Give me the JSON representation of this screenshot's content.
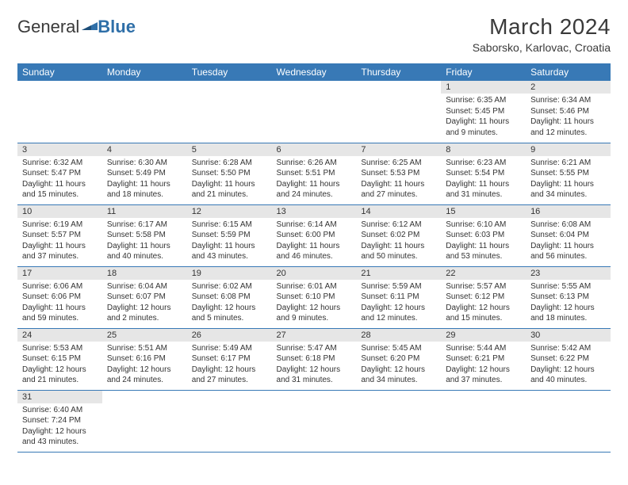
{
  "logo": {
    "text1": "General",
    "text2": "Blue"
  },
  "title": "March 2024",
  "location": "Saborsko, Karlovac, Croatia",
  "colors": {
    "header_bg": "#3879b6",
    "header_fg": "#ffffff",
    "daynum_bg": "#e6e6e6",
    "row_divider": "#3879b6",
    "logo_blue": "#2f6fa8",
    "text": "#333333",
    "page_bg": "#ffffff"
  },
  "day_headers": [
    "Sunday",
    "Monday",
    "Tuesday",
    "Wednesday",
    "Thursday",
    "Friday",
    "Saturday"
  ],
  "layout": {
    "first_weekday_index": 5,
    "days_in_month": 31
  },
  "days": [
    {
      "n": 1,
      "sunrise": "6:35 AM",
      "sunset": "5:45 PM",
      "daylight": "11 hours and 9 minutes."
    },
    {
      "n": 2,
      "sunrise": "6:34 AM",
      "sunset": "5:46 PM",
      "daylight": "11 hours and 12 minutes."
    },
    {
      "n": 3,
      "sunrise": "6:32 AM",
      "sunset": "5:47 PM",
      "daylight": "11 hours and 15 minutes."
    },
    {
      "n": 4,
      "sunrise": "6:30 AM",
      "sunset": "5:49 PM",
      "daylight": "11 hours and 18 minutes."
    },
    {
      "n": 5,
      "sunrise": "6:28 AM",
      "sunset": "5:50 PM",
      "daylight": "11 hours and 21 minutes."
    },
    {
      "n": 6,
      "sunrise": "6:26 AM",
      "sunset": "5:51 PM",
      "daylight": "11 hours and 24 minutes."
    },
    {
      "n": 7,
      "sunrise": "6:25 AM",
      "sunset": "5:53 PM",
      "daylight": "11 hours and 27 minutes."
    },
    {
      "n": 8,
      "sunrise": "6:23 AM",
      "sunset": "5:54 PM",
      "daylight": "11 hours and 31 minutes."
    },
    {
      "n": 9,
      "sunrise": "6:21 AM",
      "sunset": "5:55 PM",
      "daylight": "11 hours and 34 minutes."
    },
    {
      "n": 10,
      "sunrise": "6:19 AM",
      "sunset": "5:57 PM",
      "daylight": "11 hours and 37 minutes."
    },
    {
      "n": 11,
      "sunrise": "6:17 AM",
      "sunset": "5:58 PM",
      "daylight": "11 hours and 40 minutes."
    },
    {
      "n": 12,
      "sunrise": "6:15 AM",
      "sunset": "5:59 PM",
      "daylight": "11 hours and 43 minutes."
    },
    {
      "n": 13,
      "sunrise": "6:14 AM",
      "sunset": "6:00 PM",
      "daylight": "11 hours and 46 minutes."
    },
    {
      "n": 14,
      "sunrise": "6:12 AM",
      "sunset": "6:02 PM",
      "daylight": "11 hours and 50 minutes."
    },
    {
      "n": 15,
      "sunrise": "6:10 AM",
      "sunset": "6:03 PM",
      "daylight": "11 hours and 53 minutes."
    },
    {
      "n": 16,
      "sunrise": "6:08 AM",
      "sunset": "6:04 PM",
      "daylight": "11 hours and 56 minutes."
    },
    {
      "n": 17,
      "sunrise": "6:06 AM",
      "sunset": "6:06 PM",
      "daylight": "11 hours and 59 minutes."
    },
    {
      "n": 18,
      "sunrise": "6:04 AM",
      "sunset": "6:07 PM",
      "daylight": "12 hours and 2 minutes."
    },
    {
      "n": 19,
      "sunrise": "6:02 AM",
      "sunset": "6:08 PM",
      "daylight": "12 hours and 5 minutes."
    },
    {
      "n": 20,
      "sunrise": "6:01 AM",
      "sunset": "6:10 PM",
      "daylight": "12 hours and 9 minutes."
    },
    {
      "n": 21,
      "sunrise": "5:59 AM",
      "sunset": "6:11 PM",
      "daylight": "12 hours and 12 minutes."
    },
    {
      "n": 22,
      "sunrise": "5:57 AM",
      "sunset": "6:12 PM",
      "daylight": "12 hours and 15 minutes."
    },
    {
      "n": 23,
      "sunrise": "5:55 AM",
      "sunset": "6:13 PM",
      "daylight": "12 hours and 18 minutes."
    },
    {
      "n": 24,
      "sunrise": "5:53 AM",
      "sunset": "6:15 PM",
      "daylight": "12 hours and 21 minutes."
    },
    {
      "n": 25,
      "sunrise": "5:51 AM",
      "sunset": "6:16 PM",
      "daylight": "12 hours and 24 minutes."
    },
    {
      "n": 26,
      "sunrise": "5:49 AM",
      "sunset": "6:17 PM",
      "daylight": "12 hours and 27 minutes."
    },
    {
      "n": 27,
      "sunrise": "5:47 AM",
      "sunset": "6:18 PM",
      "daylight": "12 hours and 31 minutes."
    },
    {
      "n": 28,
      "sunrise": "5:45 AM",
      "sunset": "6:20 PM",
      "daylight": "12 hours and 34 minutes."
    },
    {
      "n": 29,
      "sunrise": "5:44 AM",
      "sunset": "6:21 PM",
      "daylight": "12 hours and 37 minutes."
    },
    {
      "n": 30,
      "sunrise": "5:42 AM",
      "sunset": "6:22 PM",
      "daylight": "12 hours and 40 minutes."
    },
    {
      "n": 31,
      "sunrise": "6:40 AM",
      "sunset": "7:24 PM",
      "daylight": "12 hours and 43 minutes."
    }
  ],
  "labels": {
    "sunrise": "Sunrise: ",
    "sunset": "Sunset: ",
    "daylight": "Daylight: "
  }
}
